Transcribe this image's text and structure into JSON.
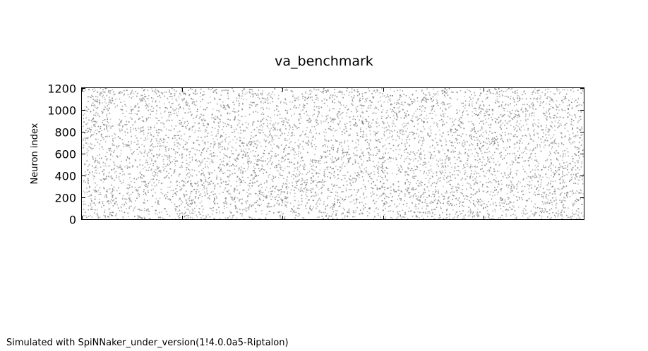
{
  "chart_data": {
    "type": "scatter",
    "title": "va_benchmark",
    "xlabel": "",
    "ylabel": "Neuron index",
    "ylim": [
      0,
      1200
    ],
    "yticks": [
      0,
      200,
      400,
      600,
      800,
      1000,
      1200
    ],
    "xtick_count": 6,
    "x_tick_labels_shown": false,
    "grid": false,
    "legend": "none",
    "marker_color": "#808080",
    "series": [
      {
        "values": "dense random raster of spike events covering neuron indices 0-1200 across the whole time window"
      }
    ]
  },
  "footer": {
    "note": "Simulated with SpiNNaker_under_version(1!4.0.0a5-Riptalon)"
  }
}
